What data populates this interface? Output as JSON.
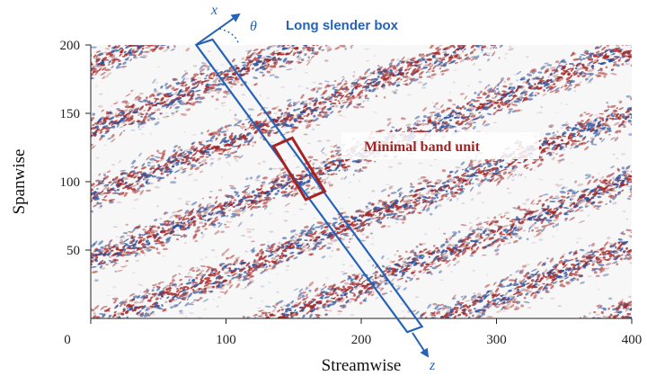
{
  "chart_data": {
    "type": "heatmap",
    "xlabel": "Streamwise",
    "ylabel": "Spanwise",
    "xlim": [
      0,
      400
    ],
    "ylim": [
      0,
      200
    ],
    "xticks": [
      {
        "value": 0,
        "label": "0"
      },
      {
        "value": 100,
        "label": "100"
      },
      {
        "value": 200,
        "label": "200"
      },
      {
        "value": 300,
        "label": "300"
      },
      {
        "value": 400,
        "label": "400"
      }
    ],
    "yticks": [
      {
        "value": 50,
        "label": "50"
      },
      {
        "value": 100,
        "label": "100"
      },
      {
        "value": 150,
        "label": "150"
      },
      {
        "value": 200,
        "label": "200"
      }
    ],
    "grid": false,
    "colors": {
      "positive": "#a52323",
      "negative": "#2b4f9a",
      "background": "#f7f7f7",
      "annotation_blue": "#2563b8",
      "annotation_red": "#a52323"
    },
    "bands": {
      "description_visible": false,
      "slope_spanwise_per_streamwise": 0.39,
      "spacing_spanwise": 48,
      "offsets_spanwise": [
        -150,
        -102,
        -54,
        -6,
        42,
        90,
        138,
        186
      ]
    },
    "annotations": {
      "long_box": {
        "label": "Long slender box",
        "corners": [
          [
            78,
            200
          ],
          [
            90,
            204
          ],
          [
            245,
            -6
          ],
          [
            234,
            -10
          ]
        ],
        "x_axis_label": "x",
        "z_axis_label": "z",
        "angle_label": "θ"
      },
      "minimal_unit": {
        "label": "Minimal band unit",
        "corners": [
          [
            135,
            126
          ],
          [
            149,
            132
          ],
          [
            173,
            93
          ],
          [
            159,
            87
          ]
        ]
      }
    }
  }
}
